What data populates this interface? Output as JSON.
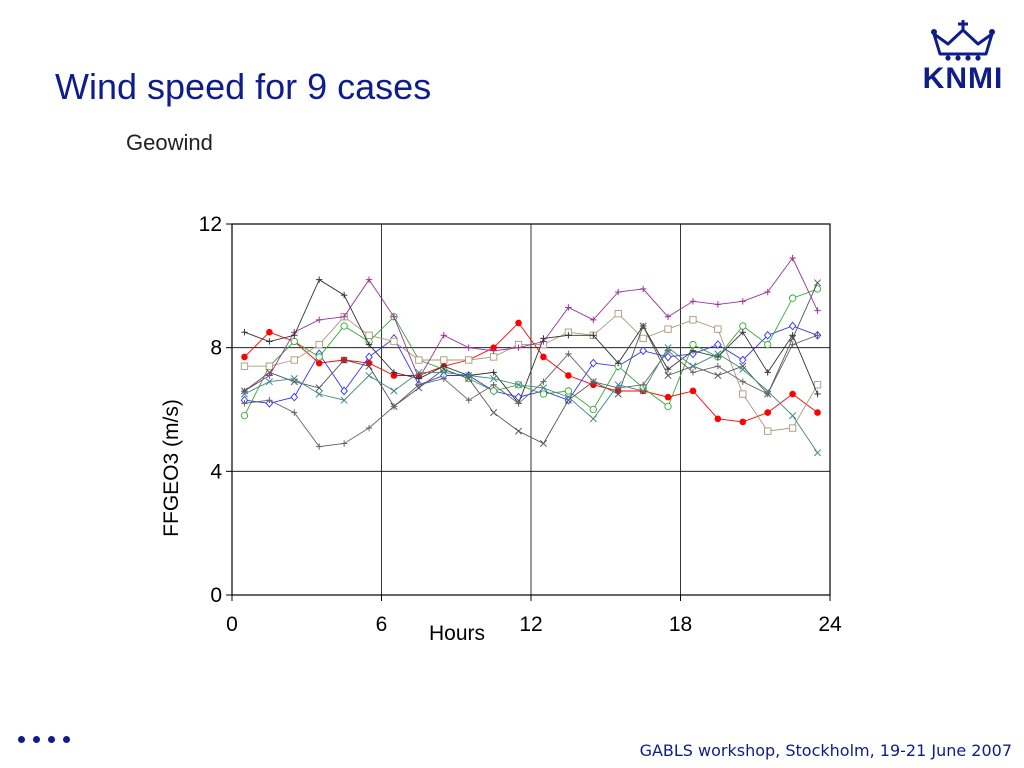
{
  "slide": {
    "title": "Wind speed for 9 cases",
    "footer": "GABLS workshop, Stockholm, 19-21 June 2007",
    "logo_text": "KNMI"
  },
  "colors": {
    "title": "#0e1c8c",
    "axis": "#000000"
  },
  "chart_data": {
    "type": "line",
    "title": "Geowind",
    "xlabel": "Hours",
    "ylabel": "FFGEO3 (m/s)",
    "xlim": [
      0,
      24
    ],
    "ylim": [
      0,
      12
    ],
    "xticks": [
      0,
      6,
      12,
      18,
      24
    ],
    "yticks": [
      0,
      4,
      8,
      12
    ],
    "grid": true,
    "x": [
      0.5,
      1.5,
      2.5,
      3.5,
      4.5,
      5.5,
      6.5,
      7.5,
      8.5,
      9.5,
      10.5,
      11.5,
      12.5,
      13.5,
      14.5,
      15.5,
      16.5,
      17.5,
      18.5,
      19.5,
      20.5,
      21.5,
      22.5,
      23.5
    ],
    "series": [
      {
        "color": "#ff0000",
        "marker": "filled-circle",
        "values": [
          7.7,
          8.5,
          8.2,
          7.5,
          7.6,
          7.5,
          7.1,
          7.1,
          7.4,
          7.6,
          8.0,
          8.8,
          7.7,
          7.1,
          6.8,
          6.6,
          6.6,
          6.4,
          6.6,
          5.7,
          5.6,
          5.9,
          6.5,
          5.9
        ]
      },
      {
        "color": "#3333ff",
        "marker": "diamond",
        "values": [
          6.3,
          6.2,
          6.4,
          7.8,
          6.6,
          7.7,
          8.3,
          6.8,
          7.1,
          7.1,
          6.6,
          6.4,
          6.6,
          6.3,
          7.5,
          7.4,
          7.9,
          7.7,
          7.8,
          8.1,
          7.6,
          8.4,
          8.7,
          8.4
        ]
      },
      {
        "color": "#33aa33",
        "marker": "circle",
        "values": [
          5.8,
          7.4,
          8.2,
          7.7,
          8.7,
          8.2,
          9.0,
          7.6,
          7.3,
          7.0,
          6.6,
          6.8,
          6.5,
          6.6,
          6.0,
          7.4,
          6.7,
          6.1,
          8.1,
          7.7,
          8.7,
          8.1,
          9.6,
          9.9
        ]
      },
      {
        "color": "#aa9977",
        "marker": "square",
        "values": [
          7.4,
          7.4,
          7.6,
          8.1,
          9.0,
          8.4,
          8.2,
          7.6,
          7.6,
          7.6,
          7.7,
          8.1,
          8.1,
          8.5,
          8.4,
          9.1,
          8.3,
          8.6,
          8.9,
          8.6,
          6.5,
          5.3,
          5.4,
          6.8
        ]
      },
      {
        "color": "#993399",
        "marker": "plus",
        "values": [
          6.6,
          7.1,
          8.5,
          8.9,
          9.0,
          10.2,
          9.0,
          7.0,
          8.4,
          8.0,
          7.9,
          8.0,
          8.2,
          9.3,
          8.9,
          9.8,
          9.9,
          9.0,
          9.5,
          9.4,
          9.5,
          9.8,
          10.9,
          9.2
        ]
      },
      {
        "color": "#333333",
        "marker": "plus",
        "values": [
          8.5,
          8.2,
          8.4,
          10.2,
          9.7,
          8.1,
          7.2,
          7.0,
          7.4,
          7.1,
          7.2,
          6.2,
          8.3,
          8.4,
          8.4,
          7.5,
          8.7,
          7.3,
          7.9,
          7.7,
          8.5,
          7.2,
          8.4,
          6.5
        ]
      },
      {
        "color": "#555555",
        "marker": "x",
        "values": [
          6.6,
          7.2,
          6.9,
          6.7,
          7.6,
          7.4,
          6.1,
          6.7,
          7.3,
          7.0,
          5.9,
          5.3,
          4.9,
          6.3,
          6.9,
          6.5,
          8.7,
          7.1,
          7.4,
          7.1,
          7.4,
          6.5,
          8.3,
          10.1
        ]
      },
      {
        "color": "#666666",
        "marker": "plus",
        "values": [
          6.2,
          6.3,
          5.9,
          4.8,
          4.9,
          5.4,
          6.1,
          6.8,
          7.0,
          6.3,
          6.8,
          6.2,
          6.9,
          7.8,
          6.9,
          6.7,
          6.8,
          7.9,
          7.2,
          7.4,
          6.9,
          6.5,
          8.1,
          8.4
        ]
      },
      {
        "color": "#448888",
        "marker": "x",
        "values": [
          6.5,
          6.9,
          7.0,
          6.5,
          6.3,
          7.1,
          6.6,
          7.2,
          7.2,
          7.1,
          7.0,
          6.8,
          6.7,
          6.4,
          5.7,
          6.8,
          6.6,
          8.0,
          7.4,
          7.8,
          7.3,
          6.6,
          5.8,
          4.6
        ]
      }
    ]
  }
}
